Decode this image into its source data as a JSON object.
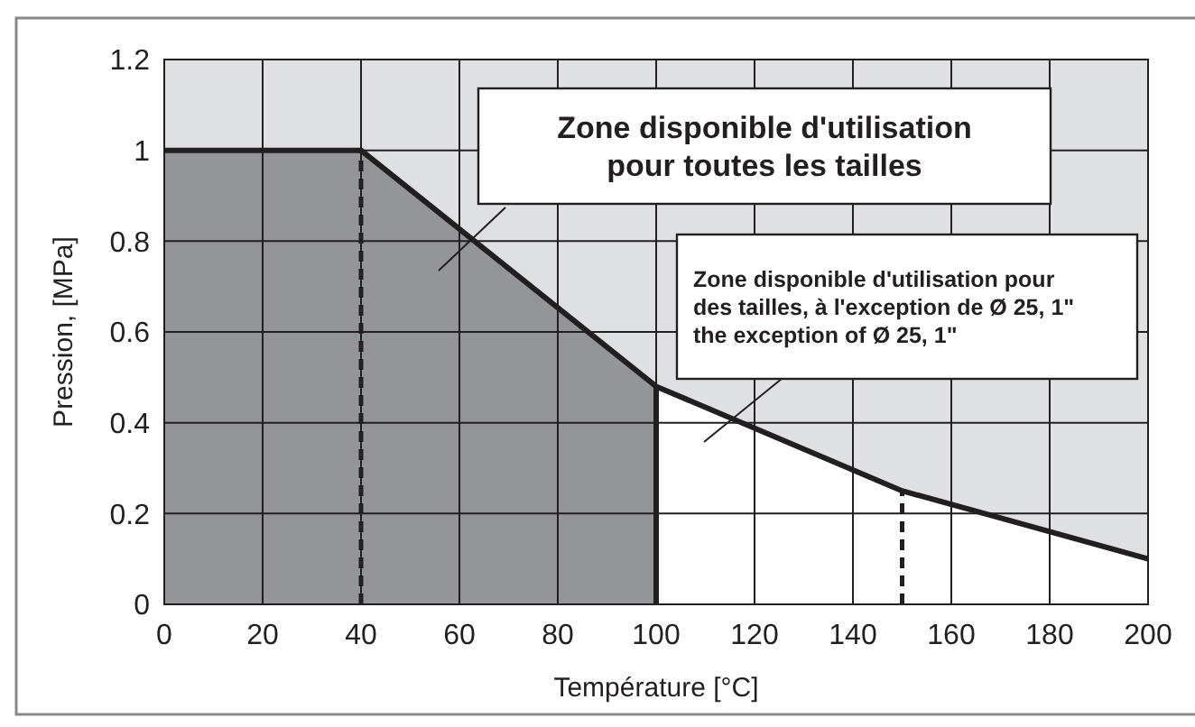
{
  "chart_data": {
    "type": "line",
    "xlabel": "Température [°C]",
    "ylabel": "Pression, [MPa]",
    "xlim": [
      0,
      200
    ],
    "xticks": [
      0,
      20,
      40,
      60,
      80,
      100,
      120,
      140,
      160,
      180,
      200
    ],
    "ylim": [
      0,
      1.2
    ],
    "yticks": [
      0,
      0.2,
      0.4,
      0.6,
      0.8,
      1,
      1.2
    ],
    "grid": true,
    "bands": [
      {
        "axis": "y",
        "from": 0,
        "to": 1.2,
        "color": "#dfe0e2"
      }
    ],
    "series": [
      {
        "type": "area",
        "color": "#939598",
        "x": [
          0,
          40,
          100
        ],
        "values": [
          1,
          1,
          0.48
        ]
      },
      {
        "type": "area",
        "color": "#ffffff",
        "x": [
          100,
          150,
          200
        ],
        "values": [
          0.48,
          0.25,
          0.1
        ]
      },
      {
        "type": "line",
        "color": "#231f20",
        "line_style": "dashed",
        "x": [
          40,
          40
        ],
        "values": [
          0,
          1
        ]
      },
      {
        "type": "line",
        "color": "#231f20",
        "line_style": "dashed",
        "x": [
          150,
          150
        ],
        "values": [
          0,
          0.25
        ]
      },
      {
        "type": "line",
        "color": "#231f20",
        "line_style": "solid",
        "x": [
          100,
          100
        ],
        "values": [
          0,
          0.48
        ]
      },
      {
        "color": "#231f20",
        "line_style": "solid",
        "x": [
          0,
          40,
          100,
          150,
          200
        ],
        "values": [
          1,
          1,
          0.48,
          0.25,
          0.1
        ]
      }
    ],
    "annotations": [
      "Zone disponible d'utilisation\npour toutes les tailles",
      "Zone disponible d'utilisation pour\ndes tailles, à l'exception de Ø 25, 1\"\nthe exception of Ø 25, 1\""
    ]
  }
}
